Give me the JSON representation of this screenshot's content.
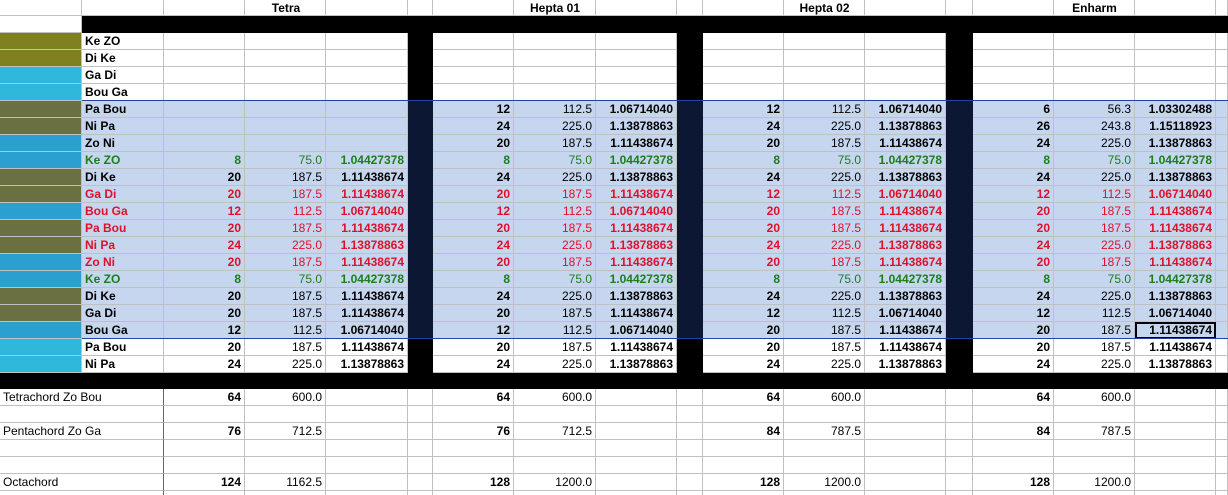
{
  "headers": [
    "Tetra",
    "Hepta 01",
    "Hepta 02",
    "Enharm"
  ],
  "rows": [
    {
      "name": "Ke ZO",
      "cells": [
        null,
        null,
        null,
        null
      ]
    },
    {
      "name": "Di Ke",
      "cells": [
        null,
        null,
        null,
        null
      ]
    },
    {
      "name": "Ga Di",
      "cells": [
        null,
        null,
        null,
        null
      ]
    },
    {
      "name": "Bou Ga",
      "cells": [
        null,
        null,
        null,
        null
      ]
    },
    {
      "name": "Pa Bou",
      "cells": [
        null,
        [
          "12",
          "112.5",
          "1.06714040"
        ],
        [
          "12",
          "112.5",
          "1.06714040"
        ],
        [
          "6",
          "56.3",
          "1.03302488"
        ]
      ]
    },
    {
      "name": "Ni Pa",
      "cells": [
        null,
        [
          "24",
          "225.0",
          "1.13878863"
        ],
        [
          "24",
          "225.0",
          "1.13878863"
        ],
        [
          "26",
          "243.8",
          "1.15118923"
        ]
      ]
    },
    {
      "name": "Zo Ni",
      "cells": [
        null,
        [
          "20",
          "187.5",
          "1.11438674"
        ],
        [
          "20",
          "187.5",
          "1.11438674"
        ],
        [
          "24",
          "225.0",
          "1.13878863"
        ]
      ]
    },
    {
      "name": "Ke ZO",
      "cells": [
        [
          "8",
          "75.0",
          "1.04427378"
        ],
        [
          "8",
          "75.0",
          "1.04427378"
        ],
        [
          "8",
          "75.0",
          "1.04427378"
        ],
        [
          "8",
          "75.0",
          "1.04427378"
        ]
      ]
    },
    {
      "name": "Di Ke",
      "cells": [
        [
          "20",
          "187.5",
          "1.11438674"
        ],
        [
          "24",
          "225.0",
          "1.13878863"
        ],
        [
          "24",
          "225.0",
          "1.13878863"
        ],
        [
          "24",
          "225.0",
          "1.13878863"
        ]
      ]
    },
    {
      "name": "Ga Di",
      "cells": [
        [
          "20",
          "187.5",
          "1.11438674"
        ],
        [
          "20",
          "187.5",
          "1.11438674"
        ],
        [
          "12",
          "112.5",
          "1.06714040"
        ],
        [
          "12",
          "112.5",
          "1.06714040"
        ]
      ]
    },
    {
      "name": "Bou Ga",
      "cells": [
        [
          "12",
          "112.5",
          "1.06714040"
        ],
        [
          "12",
          "112.5",
          "1.06714040"
        ],
        [
          "20",
          "187.5",
          "1.11438674"
        ],
        [
          "20",
          "187.5",
          "1.11438674"
        ]
      ]
    },
    {
      "name": "Pa Bou",
      "cells": [
        [
          "20",
          "187.5",
          "1.11438674"
        ],
        [
          "20",
          "187.5",
          "1.11438674"
        ],
        [
          "20",
          "187.5",
          "1.11438674"
        ],
        [
          "20",
          "187.5",
          "1.11438674"
        ]
      ]
    },
    {
      "name": "Ni Pa",
      "cells": [
        [
          "24",
          "225.0",
          "1.13878863"
        ],
        [
          "24",
          "225.0",
          "1.13878863"
        ],
        [
          "24",
          "225.0",
          "1.13878863"
        ],
        [
          "24",
          "225.0",
          "1.13878863"
        ]
      ]
    },
    {
      "name": "Zo Ni",
      "cells": [
        [
          "20",
          "187.5",
          "1.11438674"
        ],
        [
          "20",
          "187.5",
          "1.11438674"
        ],
        [
          "20",
          "187.5",
          "1.11438674"
        ],
        [
          "20",
          "187.5",
          "1.11438674"
        ]
      ]
    },
    {
      "name": "Ke ZO",
      "cells": [
        [
          "8",
          "75.0",
          "1.04427378"
        ],
        [
          "8",
          "75.0",
          "1.04427378"
        ],
        [
          "8",
          "75.0",
          "1.04427378"
        ],
        [
          "8",
          "75.0",
          "1.04427378"
        ]
      ]
    },
    {
      "name": "Di Ke",
      "cells": [
        [
          "20",
          "187.5",
          "1.11438674"
        ],
        [
          "24",
          "225.0",
          "1.13878863"
        ],
        [
          "24",
          "225.0",
          "1.13878863"
        ],
        [
          "24",
          "225.0",
          "1.13878863"
        ]
      ]
    },
    {
      "name": "Ga Di",
      "cells": [
        [
          "20",
          "187.5",
          "1.11438674"
        ],
        [
          "20",
          "187.5",
          "1.11438674"
        ],
        [
          "12",
          "112.5",
          "1.06714040"
        ],
        [
          "12",
          "112.5",
          "1.06714040"
        ]
      ]
    },
    {
      "name": "Bou Ga",
      "cells": [
        [
          "12",
          "112.5",
          "1.06714040"
        ],
        [
          "12",
          "112.5",
          "1.06714040"
        ],
        [
          "20",
          "187.5",
          "1.11438674"
        ],
        [
          "20",
          "187.5",
          "1.11438674"
        ]
      ]
    },
    {
      "name": "Pa Bou",
      "cells": [
        [
          "20",
          "187.5",
          "1.11438674"
        ],
        [
          "20",
          "187.5",
          "1.11438674"
        ],
        [
          "20",
          "187.5",
          "1.11438674"
        ],
        [
          "20",
          "187.5",
          "1.11438674"
        ]
      ]
    },
    {
      "name": "Ni Pa",
      "cells": [
        [
          "24",
          "225.0",
          "1.13878863"
        ],
        [
          "24",
          "225.0",
          "1.13878863"
        ],
        [
          "24",
          "225.0",
          "1.13878863"
        ],
        [
          "24",
          "225.0",
          "1.13878863"
        ]
      ]
    }
  ],
  "totals": [
    {
      "label": "Tetrachord Zo Bou",
      "cells": [
        [
          "64",
          "600.0"
        ],
        [
          "64",
          "600.0"
        ],
        [
          "64",
          "600.0"
        ],
        [
          "64",
          "600.0"
        ]
      ]
    },
    {
      "label": "Pentachord Zo Ga",
      "cells": [
        [
          "76",
          "712.5"
        ],
        [
          "76",
          "712.5"
        ],
        [
          "84",
          "787.5"
        ],
        [
          "84",
          "787.5"
        ]
      ]
    },
    {
      "label": "Octachord",
      "cells": [
        [
          "124",
          "1162.5"
        ],
        [
          "128",
          "1200.0"
        ],
        [
          "128",
          "1200.0"
        ],
        [
          "128",
          "1200.0"
        ]
      ]
    }
  ]
}
